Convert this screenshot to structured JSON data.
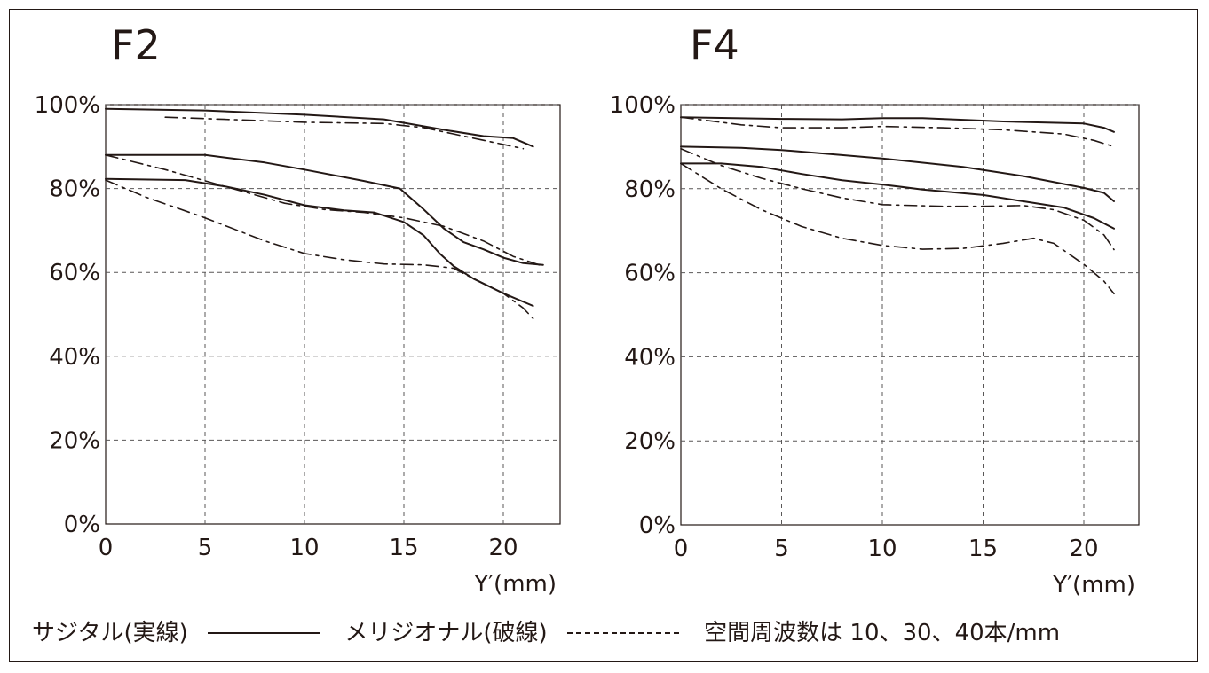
{
  "colors": {
    "ink": "#231815",
    "grid": "#595757"
  },
  "chart_data": [
    {
      "type": "line",
      "title": "F2",
      "xlabel": "Y′(mm)",
      "ylabel": "",
      "xlim": [
        0,
        22.5
      ],
      "ylim": [
        0,
        100
      ],
      "grid": true,
      "x_ticks": [
        0,
        5,
        10,
        15,
        20
      ],
      "x_tick_labels": [
        "0",
        "5",
        "10",
        "15",
        "20"
      ],
      "y_ticks": [
        0,
        20,
        40,
        60,
        80,
        100
      ],
      "y_tick_labels": [
        "0%",
        "20%",
        "40%",
        "60%",
        "80%",
        "100%"
      ],
      "series": [
        {
          "style": "solid",
          "points": [
            [
              0,
              99
            ],
            [
              5,
              98.6
            ],
            [
              10,
              97.6
            ],
            [
              14,
              96.5
            ],
            [
              17,
              94
            ],
            [
              19,
              92.5
            ],
            [
              20.5,
              92
            ],
            [
              21.5,
              90
            ]
          ]
        },
        {
          "style": "dashdot",
          "points": [
            [
              3,
              97
            ],
            [
              6,
              96.5
            ],
            [
              10,
              95.8
            ],
            [
              14,
              95.5
            ],
            [
              16,
              94.5
            ],
            [
              18,
              92.5
            ],
            [
              20,
              90.5
            ],
            [
              21,
              89.5
            ]
          ]
        },
        {
          "style": "solid",
          "points": [
            [
              0,
              88
            ],
            [
              5,
              88
            ],
            [
              8,
              86.2
            ],
            [
              10,
              84.5
            ],
            [
              13,
              81.8
            ],
            [
              14.8,
              80
            ],
            [
              16,
              75
            ],
            [
              17,
              70.5
            ],
            [
              18,
              67.2
            ],
            [
              19,
              65.5
            ],
            [
              20,
              63.5
            ],
            [
              21,
              62.2
            ],
            [
              22,
              61.8
            ]
          ]
        },
        {
          "style": "dashdot",
          "points": [
            [
              0,
              88
            ],
            [
              3,
              84.5
            ],
            [
              6,
              80.5
            ],
            [
              9,
              76.5
            ],
            [
              11,
              75
            ],
            [
              13,
              74.3
            ],
            [
              15,
              73
            ],
            [
              17,
              71
            ],
            [
              19,
              67.5
            ],
            [
              20.5,
              63.8
            ],
            [
              22,
              61.5
            ]
          ]
        },
        {
          "style": "solid",
          "points": [
            [
              0,
              82.3
            ],
            [
              4,
              82
            ],
            [
              6,
              80.5
            ],
            [
              8,
              78.5
            ],
            [
              10,
              76
            ],
            [
              12,
              74.8
            ],
            [
              13.5,
              74.3
            ],
            [
              15,
              72
            ],
            [
              16,
              68.8
            ],
            [
              16.8,
              64.5
            ],
            [
              17.5,
              61.5
            ],
            [
              18.5,
              58.5
            ],
            [
              20,
              55
            ],
            [
              21.5,
              52
            ]
          ]
        },
        {
          "style": "dashdot",
          "points": [
            [
              0,
              82
            ],
            [
              2,
              78
            ],
            [
              5,
              73
            ],
            [
              8,
              67.5
            ],
            [
              10,
              64.5
            ],
            [
              12,
              63
            ],
            [
              14,
              62
            ],
            [
              16,
              61.8
            ],
            [
              17.5,
              61
            ],
            [
              18.5,
              58.5
            ],
            [
              20,
              55
            ],
            [
              21,
              51.5
            ],
            [
              21.5,
              49
            ]
          ]
        }
      ]
    },
    {
      "type": "line",
      "title": "F4",
      "xlabel": "Y′(mm)",
      "ylabel": "",
      "xlim": [
        0,
        22.5
      ],
      "ylim": [
        0,
        100
      ],
      "grid": true,
      "x_ticks": [
        0,
        5,
        10,
        15,
        20
      ],
      "x_tick_labels": [
        "0",
        "5",
        "10",
        "15",
        "20"
      ],
      "y_ticks": [
        0,
        20,
        40,
        60,
        80,
        100
      ],
      "y_tick_labels": [
        "0%",
        "20%",
        "40%",
        "60%",
        "80%",
        "100%"
      ],
      "series": [
        {
          "style": "solid",
          "points": [
            [
              0,
              97
            ],
            [
              5,
              96.6
            ],
            [
              8,
              96.5
            ],
            [
              10,
              96.8
            ],
            [
              12,
              96.8
            ],
            [
              16,
              96
            ],
            [
              20,
              95.5
            ],
            [
              21,
              94.5
            ],
            [
              21.5,
              93.5
            ]
          ]
        },
        {
          "style": "dashdot",
          "points": [
            [
              0,
              97
            ],
            [
              3,
              95.2
            ],
            [
              5,
              94.5
            ],
            [
              8,
              94.5
            ],
            [
              10,
              94.8
            ],
            [
              13,
              94.5
            ],
            [
              16,
              94
            ],
            [
              19,
              93
            ],
            [
              20.5,
              91.5
            ],
            [
              21.5,
              90
            ]
          ]
        },
        {
          "style": "solid",
          "points": [
            [
              0,
              90
            ],
            [
              3,
              89.7
            ],
            [
              5,
              89.2
            ],
            [
              8,
              88
            ],
            [
              10,
              87.2
            ],
            [
              14,
              85.2
            ],
            [
              17,
              83
            ],
            [
              20,
              80.2
            ],
            [
              21,
              79
            ],
            [
              21.5,
              77
            ]
          ]
        },
        {
          "style": "dashdot",
          "points": [
            [
              0,
              89.5
            ],
            [
              2,
              85.5
            ],
            [
              4,
              82.5
            ],
            [
              6,
              80
            ],
            [
              8,
              77.8
            ],
            [
              10,
              76.2
            ],
            [
              13,
              75.8
            ],
            [
              15,
              75.8
            ],
            [
              17,
              76
            ],
            [
              18.5,
              75
            ],
            [
              20,
              72.5
            ],
            [
              21,
              69
            ],
            [
              21.5,
              65.5
            ]
          ]
        },
        {
          "style": "solid",
          "points": [
            [
              0,
              86
            ],
            [
              2,
              86
            ],
            [
              4,
              85.2
            ],
            [
              6,
              83.5
            ],
            [
              8,
              82
            ],
            [
              10,
              81
            ],
            [
              12,
              79.8
            ],
            [
              15,
              78.5
            ],
            [
              17,
              77
            ],
            [
              19,
              75.5
            ],
            [
              20.5,
              73
            ],
            [
              21.5,
              70.5
            ]
          ]
        },
        {
          "style": "dashdot",
          "points": [
            [
              0,
              86
            ],
            [
              2,
              80
            ],
            [
              4,
              75
            ],
            [
              6,
              71
            ],
            [
              8,
              68.2
            ],
            [
              10,
              66.5
            ],
            [
              12,
              65.6
            ],
            [
              14,
              65.8
            ],
            [
              16,
              67
            ],
            [
              17.5,
              68.2
            ],
            [
              18.5,
              67
            ],
            [
              20,
              62
            ],
            [
              21,
              58
            ],
            [
              21.5,
              55
            ]
          ]
        }
      ]
    }
  ],
  "legend": {
    "sagittal_label": "サジタル(実線)",
    "meridional_label": "メリジオナル(破線)",
    "note": "空間周波数は 10、30、40本/mm"
  }
}
